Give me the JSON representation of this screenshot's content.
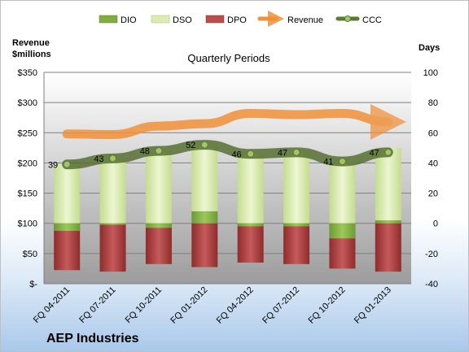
{
  "chart_data": {
    "type": "bar",
    "title": "Quarterly Periods",
    "company": "AEP Industries",
    "left_axis_title": [
      "Revenue",
      "$millions"
    ],
    "right_axis_title": "Days",
    "left_ticks": [
      "$-",
      "$50",
      "$100",
      "$150",
      "$200",
      "$250",
      "$300",
      "$350"
    ],
    "right_ticks": [
      "-40",
      "-20",
      "0",
      "20",
      "40",
      "60",
      "80",
      "100"
    ],
    "left_range": [
      0,
      350
    ],
    "right_range": [
      -40,
      100
    ],
    "categories": [
      "FQ 04-2011",
      "FQ 07-2011",
      "FQ 10-2011",
      "FQ 01-2012",
      "FQ 04-2012",
      "FQ 07-2012",
      "FQ 10-2012",
      "FQ 01-2013"
    ],
    "legend": [
      "DIO",
      "DSO",
      "DPO",
      "Revenue",
      "CCC"
    ],
    "colors": {
      "DIO": "#8cba4a",
      "DSO": "#dcecb4",
      "DPO": "#b84e4e",
      "Revenue": "#f0913a",
      "CCC": "#5d7a32"
    },
    "series": [
      {
        "name": "DIO",
        "axis": "right",
        "values": [
          -5,
          -1,
          -3,
          8,
          -2,
          -2,
          -10,
          2
        ]
      },
      {
        "name": "DSO",
        "axis": "right",
        "values": [
          44,
          44,
          51,
          44,
          48,
          49,
          51,
          48
        ]
      },
      {
        "name": "DPO",
        "axis": "right",
        "values": [
          -31,
          -32,
          -27,
          -29,
          -26,
          -27,
          -30,
          -32
        ]
      },
      {
        "name": "Revenue",
        "axis": "left",
        "values": [
          248,
          247,
          261,
          265,
          282,
          280,
          282,
          268
        ]
      },
      {
        "name": "CCC",
        "axis": "right",
        "values": [
          39,
          43,
          48,
          52,
          46,
          47,
          41,
          47
        ]
      }
    ],
    "ccc_labels": [
      "39",
      "43",
      "48",
      "52",
      "46",
      "47",
      "41",
      "47"
    ],
    "grid": true,
    "legend_position": "top"
  }
}
